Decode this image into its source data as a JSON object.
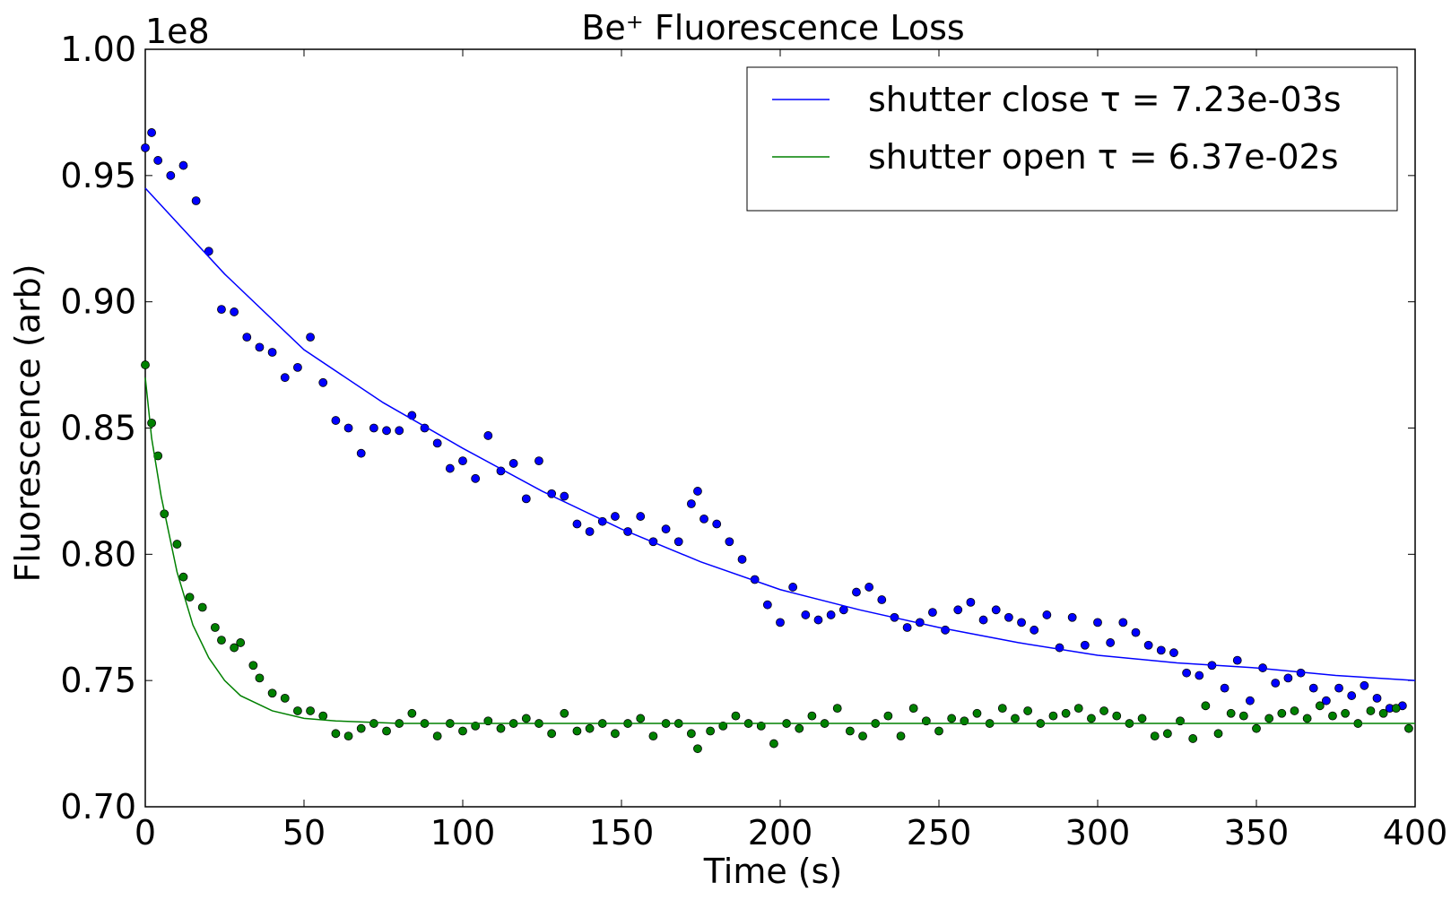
{
  "chart_data": {
    "type": "scatter",
    "title": "Be⁺ Fluorescence Loss",
    "xlabel": "Time (s)",
    "ylabel": "Fluorescence (arb)",
    "y_offset_label": "1e8",
    "xlim": [
      0,
      400
    ],
    "ylim": [
      0.7,
      1.0
    ],
    "xticks": [
      0,
      50,
      100,
      150,
      200,
      250,
      300,
      350,
      400
    ],
    "yticks": [
      {
        "value": 0.7,
        "label": "0.70"
      },
      {
        "value": 0.75,
        "label": "0.75"
      },
      {
        "value": 0.8,
        "label": "0.80"
      },
      {
        "value": 0.85,
        "label": "0.85"
      },
      {
        "value": 0.9,
        "label": "0.90"
      },
      {
        "value": 0.95,
        "label": "0.95"
      },
      {
        "value": 1.0,
        "label": "1.00"
      }
    ],
    "grid": false,
    "legend": "upper right",
    "series": [
      {
        "type": "scatter",
        "color": "#0000ff",
        "x": [
          0,
          2,
          4,
          8,
          12,
          16,
          20,
          24,
          28,
          32,
          36,
          40,
          44,
          48,
          52,
          56,
          60,
          64,
          68,
          72,
          76,
          80,
          84,
          88,
          92,
          96,
          100,
          104,
          108,
          112,
          116,
          120,
          124,
          128,
          132,
          136,
          140,
          144,
          148,
          152,
          156,
          160,
          164,
          168,
          172,
          174,
          176,
          180,
          184,
          188,
          192,
          196,
          200,
          204,
          208,
          212,
          216,
          220,
          224,
          228,
          232,
          236,
          240,
          244,
          248,
          252,
          256,
          260,
          264,
          268,
          272,
          276,
          280,
          284,
          288,
          292,
          296,
          300,
          304,
          308,
          312,
          316,
          320,
          324,
          328,
          332,
          336,
          340,
          344,
          348,
          352,
          356,
          360,
          364,
          368,
          372,
          376,
          380,
          384,
          388,
          392,
          396
        ],
        "values": [
          0.961,
          0.967,
          0.956,
          0.95,
          0.954,
          0.94,
          0.92,
          0.897,
          0.896,
          0.886,
          0.882,
          0.88,
          0.87,
          0.874,
          0.886,
          0.868,
          0.853,
          0.85,
          0.84,
          0.85,
          0.849,
          0.849,
          0.855,
          0.85,
          0.844,
          0.834,
          0.837,
          0.83,
          0.847,
          0.833,
          0.836,
          0.822,
          0.837,
          0.824,
          0.823,
          0.812,
          0.809,
          0.813,
          0.815,
          0.809,
          0.815,
          0.805,
          0.81,
          0.805,
          0.82,
          0.825,
          0.814,
          0.812,
          0.805,
          0.798,
          0.79,
          0.78,
          0.773,
          0.787,
          0.776,
          0.774,
          0.776,
          0.778,
          0.785,
          0.787,
          0.782,
          0.775,
          0.771,
          0.773,
          0.777,
          0.77,
          0.778,
          0.781,
          0.774,
          0.778,
          0.775,
          0.773,
          0.77,
          0.776,
          0.763,
          0.775,
          0.764,
          0.773,
          0.765,
          0.773,
          0.769,
          0.764,
          0.762,
          0.761,
          0.753,
          0.752,
          0.756,
          0.747,
          0.758,
          0.742,
          0.755,
          0.749,
          0.751,
          0.753,
          0.747,
          0.742,
          0.747,
          0.744,
          0.748,
          0.743,
          0.739,
          0.74
        ]
      },
      {
        "type": "scatter",
        "color": "#008000",
        "x": [
          0,
          2,
          4,
          6,
          10,
          12,
          14,
          18,
          22,
          24,
          28,
          30,
          34,
          36,
          40,
          44,
          48,
          52,
          56,
          60,
          64,
          68,
          72,
          76,
          80,
          84,
          88,
          92,
          96,
          100,
          104,
          108,
          112,
          116,
          120,
          124,
          128,
          132,
          136,
          140,
          144,
          148,
          152,
          156,
          160,
          164,
          168,
          172,
          174,
          178,
          182,
          186,
          190,
          194,
          198,
          202,
          206,
          210,
          214,
          218,
          222,
          226,
          230,
          234,
          238,
          242,
          246,
          250,
          254,
          258,
          262,
          266,
          270,
          274,
          278,
          282,
          286,
          290,
          294,
          298,
          302,
          306,
          310,
          314,
          318,
          322,
          326,
          330,
          334,
          338,
          342,
          346,
          350,
          354,
          358,
          362,
          366,
          370,
          374,
          378,
          382,
          386,
          390,
          394,
          398
        ],
        "values": [
          0.875,
          0.852,
          0.839,
          0.816,
          0.804,
          0.791,
          0.783,
          0.779,
          0.771,
          0.766,
          0.763,
          0.765,
          0.756,
          0.751,
          0.745,
          0.743,
          0.738,
          0.738,
          0.736,
          0.729,
          0.728,
          0.731,
          0.733,
          0.73,
          0.733,
          0.737,
          0.733,
          0.728,
          0.733,
          0.73,
          0.732,
          0.734,
          0.731,
          0.733,
          0.735,
          0.733,
          0.729,
          0.737,
          0.73,
          0.731,
          0.733,
          0.729,
          0.733,
          0.735,
          0.728,
          0.733,
          0.733,
          0.729,
          0.723,
          0.73,
          0.732,
          0.736,
          0.733,
          0.732,
          0.725,
          0.733,
          0.731,
          0.736,
          0.733,
          0.739,
          0.73,
          0.728,
          0.733,
          0.736,
          0.728,
          0.739,
          0.734,
          0.73,
          0.735,
          0.734,
          0.737,
          0.733,
          0.739,
          0.735,
          0.738,
          0.733,
          0.736,
          0.737,
          0.739,
          0.735,
          0.738,
          0.736,
          0.733,
          0.735,
          0.728,
          0.729,
          0.734,
          0.727,
          0.74,
          0.729,
          0.737,
          0.736,
          0.731,
          0.735,
          0.737,
          0.738,
          0.735,
          0.74,
          0.736,
          0.737,
          0.733,
          0.738,
          0.737,
          0.739,
          0.731
        ]
      },
      {
        "type": "line",
        "name": "shutter close τ = 7.23e-03s",
        "color": "#0000ff",
        "x": [
          0,
          25,
          50,
          75,
          100,
          125,
          150,
          175,
          200,
          225,
          250,
          275,
          300,
          325,
          350,
          375,
          400
        ],
        "values": [
          0.945,
          0.911,
          0.881,
          0.86,
          0.842,
          0.825,
          0.81,
          0.797,
          0.786,
          0.778,
          0.771,
          0.765,
          0.76,
          0.757,
          0.755,
          0.752,
          0.75
        ]
      },
      {
        "type": "line",
        "name": "shutter open τ = 6.37e-02s",
        "color": "#008000",
        "x": [
          0,
          2,
          5,
          10,
          15,
          20,
          25,
          30,
          40,
          50,
          60,
          80,
          400
        ],
        "values": [
          0.87,
          0.846,
          0.823,
          0.793,
          0.772,
          0.759,
          0.75,
          0.744,
          0.738,
          0.735,
          0.734,
          0.733,
          0.733
        ]
      }
    ]
  }
}
